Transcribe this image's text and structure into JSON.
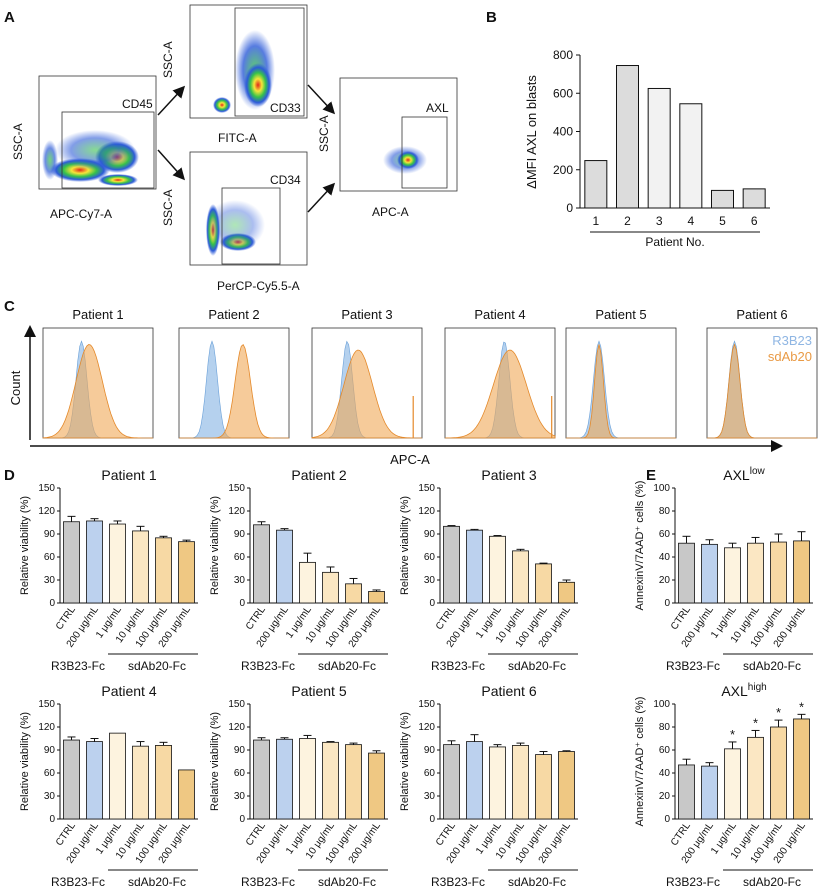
{
  "panel_labels": {
    "A": "A",
    "B": "B",
    "C": "C",
    "D": "D",
    "E": "E"
  },
  "colors": {
    "ctrl": "#c8c8c8",
    "r3b23": "#bcd1ee",
    "sd1": "#fdf3df",
    "sd10": "#fbe7c3",
    "sd100": "#f7d9a4",
    "sd200": "#efc883",
    "hist_blue": "#9cc2e8",
    "hist_orange": "#f0a856",
    "bar_b": "#dcdcdc",
    "bar_b_light": "#f2f2f2"
  },
  "flow": {
    "plots": [
      {
        "y_label": "SSC-A",
        "x_label": "APC-Cy7-A",
        "gate_label": "CD45"
      },
      {
        "y_label": "SSC-A",
        "x_label": "FITC-A",
        "gate_label": "CD33"
      },
      {
        "y_label": "SSC-A",
        "x_label": "PerCP-Cy5.5-A",
        "gate_label": "CD34"
      },
      {
        "y_label": "SSC-A",
        "x_label": "APC-A",
        "gate_label": "AXL"
      }
    ]
  },
  "histograms": {
    "y_label": "Count",
    "x_label": "APC-A",
    "legend": [
      "R3B23",
      "sdAb20"
    ],
    "patients": [
      "Patient 1",
      "Patient 2",
      "Patient 3",
      "Patient 4",
      "Patient 5",
      "Patient 6"
    ]
  },
  "chart_data": [
    {
      "type": "bar",
      "id": "B",
      "categories": [
        "1",
        "2",
        "3",
        "4",
        "5",
        "6"
      ],
      "values": [
        248,
        745,
        625,
        545,
        92,
        100
      ],
      "xlabel": "Patient No.",
      "ylabel": "ΔMFI AXL on blasts",
      "ylim": [
        0,
        800
      ],
      "yticks": [
        "0",
        "200",
        "400",
        "600",
        "800"
      ]
    },
    {
      "type": "bar",
      "id": "D",
      "ylabel": "Relative viability (%)",
      "ylim": [
        0,
        150
      ],
      "yticks": [
        "0",
        "30",
        "60",
        "90",
        "120",
        "150"
      ],
      "categories": [
        "CTRL",
        "200 μg/mL",
        "1 μg/mL",
        "10 μg/mL",
        "100 μg/mL",
        "200 μg/mL"
      ],
      "group_labels": [
        "R3B23-Fc",
        "sdAb20-Fc"
      ],
      "panels": [
        {
          "title": "Patient 1",
          "values": [
            106,
            107,
            103,
            94,
            85,
            80
          ],
          "errors": [
            7,
            3,
            4,
            6,
            2,
            2
          ]
        },
        {
          "title": "Patient 2",
          "values": [
            102,
            95,
            53,
            40,
            25,
            15
          ],
          "errors": [
            4,
            2,
            12,
            7,
            7,
            2
          ]
        },
        {
          "title": "Patient 3",
          "values": [
            100,
            95,
            87,
            68,
            51,
            27
          ],
          "errors": [
            1,
            1,
            1,
            2,
            1,
            3
          ]
        },
        {
          "title": "Patient 4",
          "values": [
            103,
            101,
            112,
            95,
            96,
            64
          ],
          "errors": [
            4,
            4,
            0,
            6,
            4,
            0
          ]
        },
        {
          "title": "Patient 5",
          "values": [
            103,
            104,
            105,
            100,
            97,
            86
          ],
          "errors": [
            3,
            2,
            4,
            1,
            2,
            3
          ]
        },
        {
          "title": "Patient 6",
          "values": [
            97,
            101,
            94,
            96,
            84,
            88
          ],
          "errors": [
            5,
            9,
            3,
            3,
            4,
            1
          ]
        }
      ]
    },
    {
      "type": "bar",
      "id": "E",
      "ylabel": "AnnexinV/7AAD⁺ cells (%)",
      "ylim": [
        0,
        100
      ],
      "yticks": [
        "0",
        "20",
        "40",
        "60",
        "80",
        "100"
      ],
      "categories": [
        "CTRL",
        "200 μg/mL",
        "1 μg/mL",
        "10 μg/mL",
        "100 μg/mL",
        "200 μg/mL"
      ],
      "group_labels": [
        "R3B23-Fc",
        "sdAb20-Fc"
      ],
      "panels": [
        {
          "title_base": "AXL",
          "title_sup": "low",
          "values": [
            52,
            51,
            48,
            52,
            53,
            54
          ],
          "errors": [
            6,
            4,
            4,
            5,
            7,
            8
          ],
          "stars": [
            "",
            "",
            "",
            "",
            "",
            ""
          ]
        },
        {
          "title_base": "AXL",
          "title_sup": "high",
          "values": [
            47,
            46,
            61,
            71,
            80,
            87
          ],
          "errors": [
            5,
            3,
            6,
            6,
            6,
            4
          ],
          "stars": [
            "",
            "",
            "*",
            "*",
            "*",
            "*"
          ]
        }
      ]
    }
  ]
}
